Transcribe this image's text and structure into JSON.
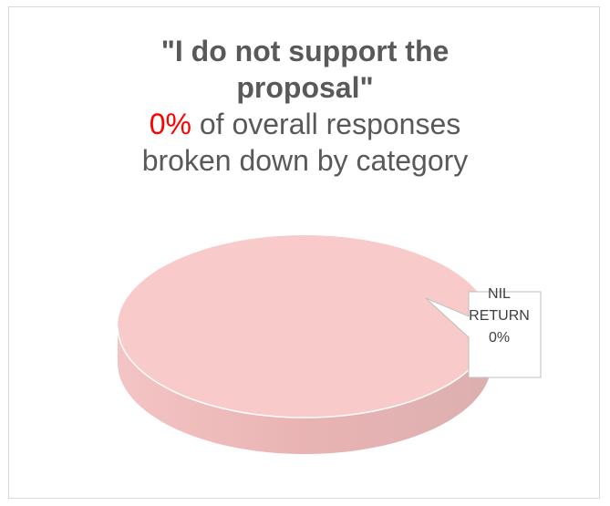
{
  "chart_data": {
    "type": "pie",
    "title_line1": "\"I do not support the",
    "title_line2": "proposal\"",
    "subtitle_pct": "0%",
    "subtitle_rest": " of overall responses",
    "subtitle_line2": "broken down by category",
    "slices": [
      {
        "label": "NIL RETURN",
        "label_line1": "NIL",
        "label_line2": "RETURN",
        "value": 0,
        "value_label": "0%",
        "color": "#f8caca"
      }
    ],
    "style": "3d-pie"
  },
  "colors": {
    "slice_top": "#f8caca",
    "slice_side": "#f0b8b8",
    "title_text": "#595959",
    "highlight": "#ff0000",
    "border": "#d9d9d9"
  }
}
